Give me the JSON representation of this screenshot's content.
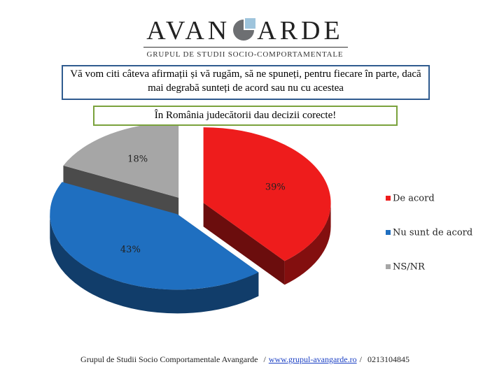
{
  "header": {
    "logo_left": "AVAN",
    "logo_right": "ARDE",
    "subtitle": "GRUPUL DE STUDII SOCIO-COMPORTAMENTALE"
  },
  "question": "Vă vom citi câteva afirmații și vă rugăm, să ne spuneți, pentru fiecare în parte, dacă mai degrabă sunteți de acord sau nu cu acestea",
  "chart_data": {
    "type": "pie",
    "title": "În România judecătorii dau decizii corecte!",
    "categories": [
      "De acord",
      "Nu sunt de acord",
      "NS/NR"
    ],
    "values": [
      39,
      43,
      18
    ],
    "value_labels": [
      "39%",
      "43%",
      "18%"
    ],
    "colors": [
      "#ee1c1c",
      "#1f6fc0",
      "#a6a6a6"
    ],
    "legend": "right"
  },
  "footer": {
    "organization": "Grupul de Studii Socio Comportamentale Avangarde",
    "separator": "/",
    "website": "www.grupul-avangarde.ro",
    "phone": "0213104845"
  }
}
